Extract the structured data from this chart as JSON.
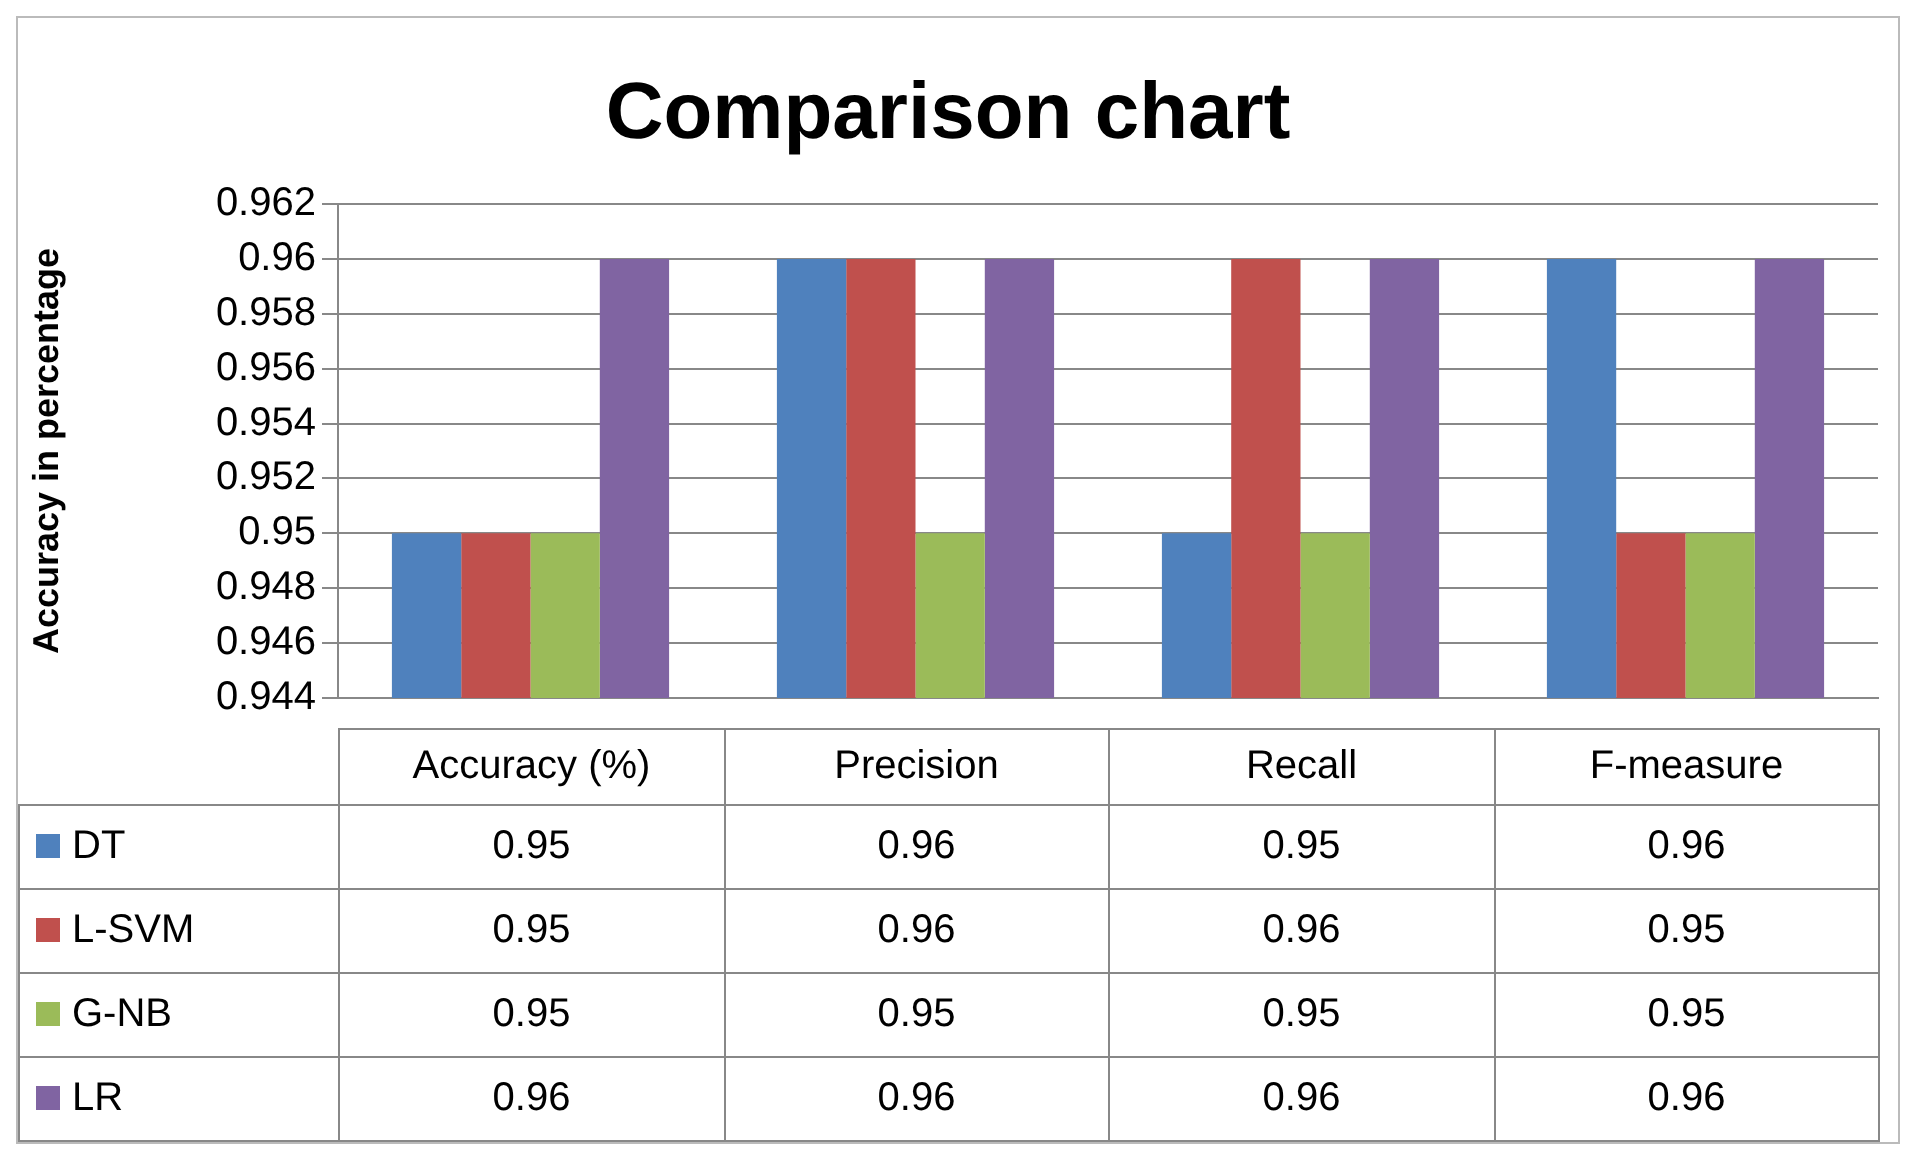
{
  "chart_data": {
    "type": "bar",
    "title": "Comparison chart",
    "ylabel": "Accuracy in percentage",
    "categories": [
      "Accuracy (%)",
      "Precision",
      "Recall",
      "F-measure"
    ],
    "series": [
      {
        "name": "DT",
        "color": "#4f81bd",
        "values": [
          0.95,
          0.96,
          0.95,
          0.96
        ]
      },
      {
        "name": "L-SVM",
        "color": "#c0504d",
        "values": [
          0.95,
          0.96,
          0.96,
          0.95
        ]
      },
      {
        "name": "G-NB",
        "color": "#9bbb59",
        "values": [
          0.95,
          0.95,
          0.95,
          0.95
        ]
      },
      {
        "name": "LR",
        "color": "#8064a2",
        "values": [
          0.96,
          0.96,
          0.96,
          0.96
        ]
      }
    ],
    "ylim": [
      0.944,
      0.962
    ],
    "yticks": [
      0.944,
      0.946,
      0.948,
      0.95,
      0.952,
      0.954,
      0.956,
      0.958,
      0.96,
      0.962
    ],
    "grid": "y",
    "legend": "bottom",
    "data_labels": true
  }
}
